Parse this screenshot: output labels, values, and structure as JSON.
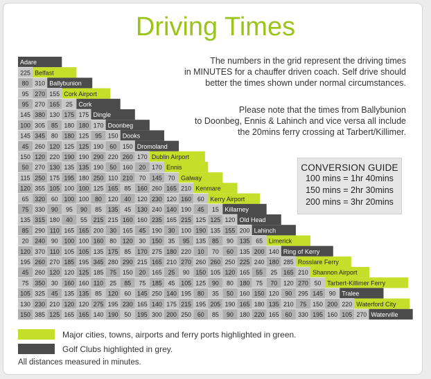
{
  "title": "Driving Times",
  "intro": {
    "l1": "The numbers in the grid represent the driving times",
    "l2": "in MINUTES for a chauffer driven coach. Self drive should",
    "l3": "better the times shown under normal circumstances.",
    "n1": "Please note that the times from Ballybunion",
    "n2": "to Doonbeg, Ennis & Lahinch and vice versa all include",
    "n3": "the 20mins ferry crossing at Tarbert/Killimer."
  },
  "conversion": {
    "heading": "CONVERSION GUIDE",
    "lines": [
      "100 mins = 1hr 40mins",
      "150 mins = 2hr 30mins",
      "200 mins = 3hr 20mins"
    ]
  },
  "legend": {
    "green_text": "Major cities, towns, airports and ferry ports highlighted in green.",
    "grey_text": "Golf Clubs highlighted in grey."
  },
  "footnote": "All distances measured in minutes.",
  "colors": {
    "green": "#c3df29",
    "dark": "#4b4b4b",
    "cell_a": "#b0b0b0",
    "cell_b": "#c7c7c7",
    "title": "#9cc31a"
  },
  "places": [
    {
      "name": "Adare",
      "type": "golf"
    },
    {
      "name": "Belfast",
      "type": "city"
    },
    {
      "name": "Ballybunion",
      "type": "golf"
    },
    {
      "name": "Cork Airport",
      "type": "city"
    },
    {
      "name": "Cork",
      "type": "golf"
    },
    {
      "name": "Dingle",
      "type": "golf"
    },
    {
      "name": "Doonbeg",
      "type": "golf"
    },
    {
      "name": "Dooks",
      "type": "golf"
    },
    {
      "name": "Dromoland",
      "type": "golf"
    },
    {
      "name": "Dublin Airport",
      "type": "city"
    },
    {
      "name": "Ennis",
      "type": "city"
    },
    {
      "name": "Galway",
      "type": "city"
    },
    {
      "name": "Kenmare",
      "type": "city"
    },
    {
      "name": "Kerry Airport",
      "type": "city"
    },
    {
      "name": "Killarney",
      "type": "golf"
    },
    {
      "name": "Old Head",
      "type": "golf"
    },
    {
      "name": "Lahinch",
      "type": "golf"
    },
    {
      "name": "Limerick",
      "type": "city"
    },
    {
      "name": "Ring of Kerry",
      "type": "golf"
    },
    {
      "name": "Rosslare Ferry",
      "type": "city"
    },
    {
      "name": "Shannon Airport",
      "type": "city"
    },
    {
      "name": "Tarbert-Killimer Ferry",
      "type": "city"
    },
    {
      "name": "Tralee",
      "type": "golf"
    },
    {
      "name": "Waterford City",
      "type": "city"
    },
    {
      "name": "Waterville",
      "type": "golf"
    }
  ],
  "times": [
    [],
    [
      225
    ],
    [
      80,
      310
    ],
    [
      95,
      270,
      155
    ],
    [
      95,
      270,
      165,
      25
    ],
    [
      145,
      380,
      130,
      175,
      175
    ],
    [
      100,
      305,
      85,
      180,
      180,
      170
    ],
    [
      145,
      345,
      80,
      180,
      125,
      95,
      150
    ],
    [
      45,
      260,
      120,
      125,
      125,
      190,
      60,
      150
    ],
    [
      150,
      120,
      220,
      190,
      190,
      290,
      220,
      260,
      170
    ],
    [
      50,
      270,
      130,
      135,
      135,
      190,
      50,
      160,
      20,
      170
    ],
    [
      115,
      250,
      175,
      195,
      180,
      250,
      110,
      210,
      70,
      145,
      70
    ],
    [
      120,
      355,
      105,
      100,
      100,
      125,
      165,
      85,
      160,
      260,
      165,
      210
    ],
    [
      65,
      320,
      60,
      100,
      100,
      80,
      120,
      40,
      120,
      230,
      120,
      160,
      60
    ],
    [
      75,
      330,
      90,
      95,
      90,
      85,
      135,
      45,
      130,
      240,
      140,
      190,
      45,
      15
    ],
    [
      135,
      315,
      180,
      40,
      55,
      215,
      215,
      160,
      160,
      235,
      165,
      215,
      125,
      125,
      120
    ],
    [
      85,
      290,
      110,
      165,
      165,
      200,
      30,
      165,
      45,
      190,
      30,
      100,
      190,
      135,
      155,
      200
    ],
    [
      20,
      240,
      90,
      100,
      100,
      160,
      80,
      120,
      30,
      150,
      35,
      95,
      135,
      85,
      90,
      135,
      65
    ],
    [
      120,
      370,
      110,
      105,
      105,
      135,
      175,
      85,
      170,
      275,
      180,
      220,
      10,
      70,
      60,
      135,
      200,
      140
    ],
    [
      195,
      260,
      270,
      185,
      195,
      345,
      280,
      290,
      215,
      165,
      210,
      270,
      260,
      260,
      250,
      225,
      240,
      180,
      285
    ],
    [
      45,
      260,
      120,
      120,
      125,
      185,
      75,
      150,
      20,
      165,
      25,
      90,
      150,
      105,
      120,
      165,
      55,
      25,
      165,
      210
    ],
    [
      75,
      350,
      30,
      160,
      160,
      110,
      25,
      85,
      75,
      185,
      45,
      105,
      125,
      90,
      80,
      180,
      75,
      70,
      120,
      270,
      50
    ],
    [
      105,
      325,
      45,
      135,
      135,
      85,
      120,
      60,
      145,
      250,
      140,
      195,
      80,
      35,
      50,
      160,
      150,
      120,
      90,
      295,
      145,
      90
    ],
    [
      130,
      230,
      210,
      120,
      120,
      275,
      195,
      230,
      165,
      140,
      175,
      215,
      195,
      205,
      190,
      165,
      180,
      135,
      210,
      75,
      150,
      200,
      220
    ],
    [
      150,
      385,
      125,
      165,
      165,
      140,
      190,
      50,
      195,
      300,
      200,
      250,
      60,
      85,
      90,
      180,
      220,
      165,
      60,
      330,
      195,
      160,
      105,
      270
    ]
  ]
}
